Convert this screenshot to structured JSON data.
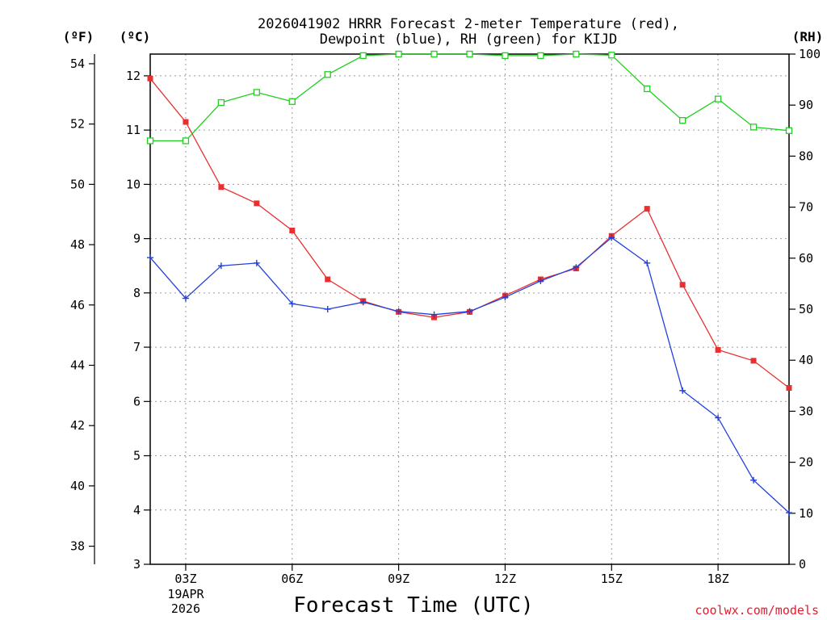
{
  "chart_data": {
    "type": "line",
    "title_lines": [
      "2026041902 HRRR Forecast 2-meter Temperature (red),",
      "Dewpoint (blue), RH (green) for KIJD"
    ],
    "xlabel": "Forecast Time (UTC)",
    "credit": "coolwx.com/models",
    "x_hours": [
      2,
      3,
      4,
      5,
      6,
      7,
      8,
      9,
      10,
      11,
      12,
      13,
      14,
      15,
      16,
      17,
      18,
      19,
      20
    ],
    "xlim": [
      2,
      20
    ],
    "x_ticks": [
      {
        "hour": 3,
        "label": "03Z",
        "sub1": "19APR",
        "sub2": "2026"
      },
      {
        "hour": 6,
        "label": "06Z"
      },
      {
        "hour": 9,
        "label": "09Z"
      },
      {
        "hour": 12,
        "label": "12Z"
      },
      {
        "hour": 15,
        "label": "15Z"
      },
      {
        "hour": 18,
        "label": "18Z"
      }
    ],
    "axes": {
      "celsius": {
        "unit_label": "(ºC)",
        "range": [
          3,
          12.4
        ],
        "ticks": [
          "3",
          "4",
          "5",
          "6",
          "7",
          "8",
          "9",
          "10",
          "11",
          "12"
        ]
      },
      "fahrenheit": {
        "unit_label": "(ºF)",
        "range": [
          37.4,
          54.32
        ],
        "ticks": [
          "38",
          "40",
          "42",
          "44",
          "46",
          "48",
          "50",
          "52",
          "54"
        ]
      },
      "rh": {
        "unit_label": "(RH)",
        "range": [
          0,
          100
        ],
        "ticks": [
          "0",
          "10",
          "20",
          "30",
          "40",
          "50",
          "60",
          "70",
          "80",
          "90",
          "100"
        ]
      }
    },
    "series": [
      {
        "name": "Temperature",
        "axis": "celsius",
        "color": "#e83030",
        "marker": "filled-square",
        "values": [
          11.95,
          11.15,
          9.95,
          9.65,
          9.15,
          8.25,
          7.85,
          7.65,
          7.55,
          7.65,
          7.95,
          8.25,
          8.45,
          9.05,
          9.55,
          8.15,
          6.95,
          6.75,
          6.25
        ]
      },
      {
        "name": "Dewpoint",
        "axis": "celsius",
        "color": "#2040e0",
        "marker": "plus",
        "values": [
          8.65,
          7.9,
          8.5,
          8.55,
          7.8,
          7.7,
          7.83,
          7.66,
          7.6,
          7.66,
          7.92,
          8.22,
          8.47,
          9.02,
          8.55,
          6.2,
          5.7,
          4.55,
          3.95
        ]
      },
      {
        "name": "RH",
        "axis": "rh",
        "color": "#20d020",
        "marker": "open-square",
        "values": [
          83,
          83,
          90.5,
          92.5,
          90.7,
          96,
          99.7,
          100,
          100,
          100,
          99.7,
          99.7,
          100,
          99.8,
          93.2,
          87,
          91.2,
          85.7,
          85
        ]
      }
    ]
  }
}
